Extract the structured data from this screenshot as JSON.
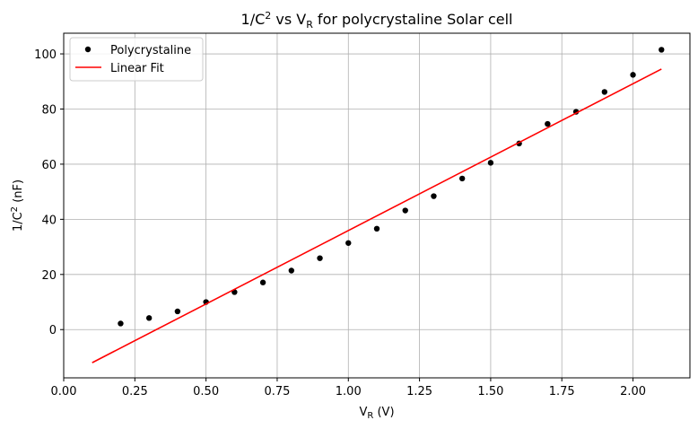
{
  "chart_data": {
    "type": "scatter",
    "title_parts": {
      "pre": "1/C",
      "sup": "2",
      "mid": " vs V",
      "sub": "R",
      "post": " for polycrystaline Solar cell"
    },
    "xlabel_parts": {
      "pre": "V",
      "sub": "R",
      "post": " (V)"
    },
    "ylabel_parts": {
      "pre": "1/C",
      "sup": "2",
      "post": " (nF)"
    },
    "xlim": [
      0.0,
      2.2
    ],
    "ylim": [
      -17.5,
      107.5
    ],
    "xticks": [
      0.0,
      0.25,
      0.5,
      0.75,
      1.0,
      1.25,
      1.5,
      1.75,
      2.0
    ],
    "xtick_labels": [
      "0.00",
      "0.25",
      "0.50",
      "0.75",
      "1.00",
      "1.25",
      "1.50",
      "1.75",
      "2.00"
    ],
    "yticks": [
      0,
      20,
      40,
      60,
      80,
      100
    ],
    "ytick_labels": [
      "0",
      "20",
      "40",
      "60",
      "80",
      "100"
    ],
    "grid": true,
    "legend_position": "top-left",
    "series": [
      {
        "name": "Polycrystaline",
        "kind": "scatter",
        "color": "#000000",
        "x": [
          0.2,
          0.3,
          0.4,
          0.5,
          0.6,
          0.7,
          0.8,
          0.9,
          1.0,
          1.1,
          1.2,
          1.3,
          1.4,
          1.5,
          1.6,
          1.7,
          1.8,
          1.9,
          2.0,
          2.1
        ],
        "y": [
          2.2,
          4.2,
          6.6,
          10.0,
          13.6,
          17.1,
          21.4,
          25.9,
          31.4,
          36.6,
          43.2,
          48.4,
          54.8,
          60.5,
          67.5,
          74.6,
          79.0,
          86.2,
          92.4,
          101.5
        ]
      },
      {
        "name": "Linear Fit",
        "kind": "line",
        "color": "#ff0000",
        "x": [
          0.1,
          2.1
        ],
        "y": [
          -12.0,
          94.5
        ]
      }
    ]
  }
}
